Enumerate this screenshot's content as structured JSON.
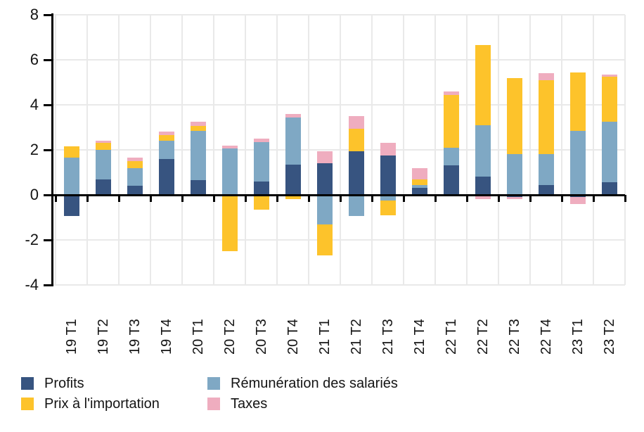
{
  "chart_data": {
    "type": "bar",
    "stacked": true,
    "title": "",
    "xlabel": "",
    "ylabel": "",
    "categories": [
      "19 T1",
      "19 T2",
      "19 T3",
      "19 T4",
      "20 T1",
      "20 T2",
      "20 T3",
      "20 T4",
      "21 T1",
      "21 T2",
      "21 T3",
      "21 T4",
      "22 T1",
      "22 T2",
      "22 T3",
      "22 T4",
      "23 T1",
      "23 T2"
    ],
    "series": [
      {
        "name": "Profits",
        "color": "#375480",
        "values": [
          -0.95,
          0.7,
          0.4,
          1.6,
          0.65,
          0,
          0.6,
          1.35,
          1.4,
          1.95,
          1.75,
          0.3,
          1.3,
          0.8,
          -0.1,
          0.45,
          -0.1,
          0.55
        ]
      },
      {
        "name": "Rémunération des salariés",
        "color": "#7fa8c4",
        "values": [
          1.65,
          1.3,
          0.8,
          0.8,
          2.2,
          2.05,
          1.75,
          2.1,
          -1.3,
          -0.95,
          -0.25,
          0.15,
          0.8,
          2.3,
          1.8,
          1.35,
          2.85,
          2.7
        ]
      },
      {
        "name": "Prix à l'importation",
        "color": "#fdc32b",
        "values": [
          0.5,
          0.3,
          0.3,
          0.25,
          0.2,
          -2.5,
          -0.65,
          -0.2,
          -1.4,
          1.0,
          -0.65,
          0.25,
          2.35,
          3.55,
          3.4,
          3.3,
          2.6,
          2.0
        ]
      },
      {
        "name": "Taxes",
        "color": "#efadbf",
        "values": [
          0,
          0.1,
          0.15,
          0.15,
          0.2,
          0.15,
          0.15,
          0.15,
          0.55,
          0.55,
          0.55,
          0.5,
          0.15,
          -0.2,
          -0.1,
          0.3,
          -0.3,
          0.1
        ]
      }
    ],
    "ylim": [
      -4,
      8
    ],
    "yticks": [
      8,
      6,
      4,
      2,
      0,
      -2,
      -4
    ],
    "grid": true,
    "legend_position": "bottom-left",
    "axis_color": "#000000",
    "grid_color": "#e9e9e9",
    "text_color": "#141414"
  },
  "legend": {
    "items": [
      {
        "label": "Profits",
        "color": "#375480"
      },
      {
        "label": "Prix à l'importation",
        "color": "#fdc32b"
      },
      {
        "label": "Rémunération des salariés",
        "color": "#7fa8c4"
      },
      {
        "label": "Taxes",
        "color": "#efadbf"
      }
    ]
  }
}
